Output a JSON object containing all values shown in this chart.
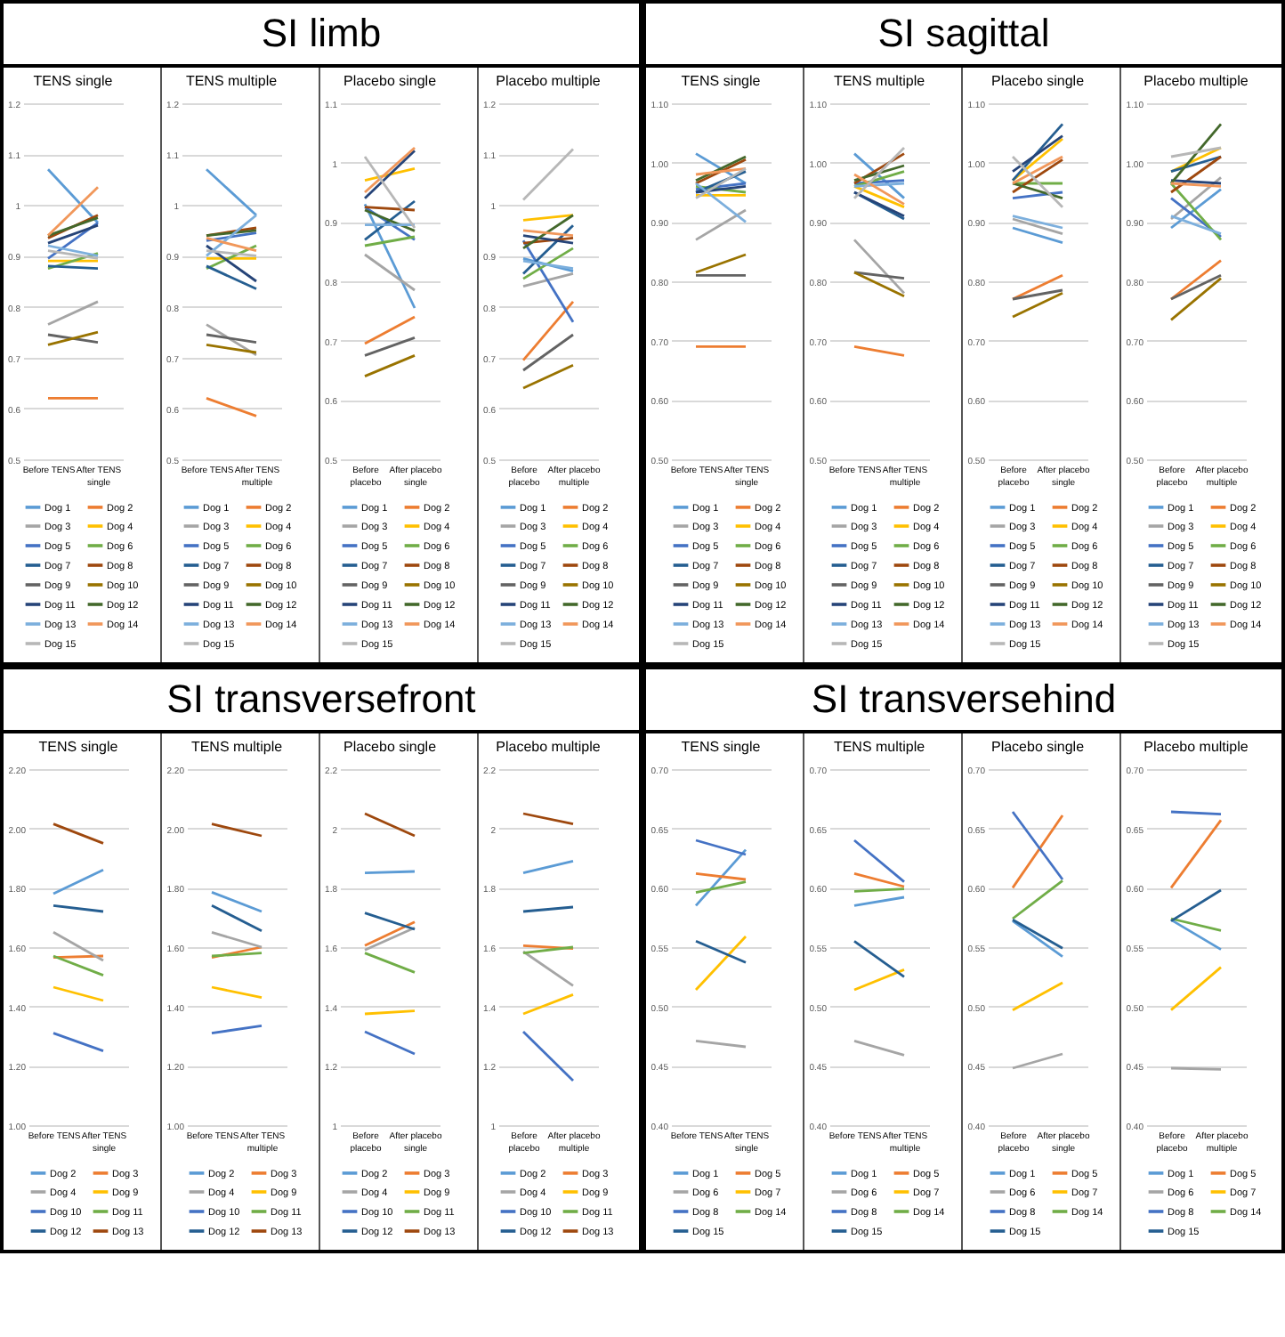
{
  "chart_data": [
    {
      "type": "other",
      "title": "SI limb"
    },
    {
      "type": "line",
      "subtitle": "TENS single",
      "categories": [
        "Before TENS",
        "After TENS single"
      ],
      "ylim": [
        0.5,
        1.2
      ],
      "yticks": [
        0.5,
        0.6,
        0.7,
        0.8,
        0.9,
        1,
        1.1,
        1.2
      ],
      "grid": "y",
      "legend": "bottom",
      "series": [
        {
          "name": "Dog 1",
          "color": "#5b9bd5",
          "values": [
            1.07,
            0.965
          ]
        },
        {
          "name": "Dog 2",
          "color": "#ed7d31",
          "values": [
            0.62,
            0.62
          ]
        },
        {
          "name": "Dog 3",
          "color": "#a5a5a5",
          "values": [
            0.765,
            0.81
          ]
        },
        {
          "name": "Dog 4",
          "color": "#ffc000",
          "values": [
            0.89,
            0.89
          ]
        },
        {
          "name": "Dog 5",
          "color": "#4472c4",
          "values": [
            0.895,
            0.965
          ]
        },
        {
          "name": "Dog 6",
          "color": "#70ad47",
          "values": [
            0.875,
            0.905
          ]
        },
        {
          "name": "Dog 7",
          "color": "#255e91",
          "values": [
            0.88,
            0.875
          ]
        },
        {
          "name": "Dog 8",
          "color": "#9e480e",
          "values": [
            0.935,
            0.98
          ]
        },
        {
          "name": "Dog 9",
          "color": "#636363",
          "values": [
            0.745,
            0.73
          ]
        },
        {
          "name": "Dog 10",
          "color": "#997300",
          "values": [
            0.725,
            0.75
          ]
        },
        {
          "name": "Dog 11",
          "color": "#264478",
          "values": [
            0.925,
            0.96
          ]
        },
        {
          "name": "Dog 12",
          "color": "#43682b",
          "values": [
            0.94,
            0.975
          ]
        },
        {
          "name": "Dog 13",
          "color": "#7cafdd",
          "values": [
            0.92,
            0.9
          ]
        },
        {
          "name": "Dog 14",
          "color": "#f1975a",
          "values": [
            0.94,
            1.035
          ]
        },
        {
          "name": "Dog 15",
          "color": "#b7b7b7",
          "values": [
            0.91,
            0.895
          ]
        }
      ]
    },
    {
      "type": "line",
      "subtitle": "TENS multiple",
      "categories": [
        "Before TENS",
        "After TENS multiple"
      ],
      "ylim": [
        0.5,
        1.2
      ],
      "yticks": [
        0.5,
        0.6,
        0.7,
        0.8,
        0.9,
        1,
        1.1,
        1.2
      ],
      "grid": "y",
      "legend": "bottom",
      "series": [
        {
          "name": "Dog 1",
          "color": "#5b9bd5",
          "values": [
            1.07,
            0.98
          ]
        },
        {
          "name": "Dog 2",
          "color": "#ed7d31",
          "values": [
            0.62,
            0.585
          ]
        },
        {
          "name": "Dog 3",
          "color": "#a5a5a5",
          "values": [
            0.765,
            0.705
          ]
        },
        {
          "name": "Dog 4",
          "color": "#ffc000",
          "values": [
            0.895,
            0.895
          ]
        },
        {
          "name": "Dog 5",
          "color": "#4472c4",
          "values": [
            0.93,
            0.945
          ]
        },
        {
          "name": "Dog 6",
          "color": "#70ad47",
          "values": [
            0.875,
            0.92
          ]
        },
        {
          "name": "Dog 7",
          "color": "#255e91",
          "values": [
            0.88,
            0.835
          ]
        },
        {
          "name": "Dog 8",
          "color": "#9e480e",
          "values": [
            0.94,
            0.955
          ]
        },
        {
          "name": "Dog 9",
          "color": "#636363",
          "values": [
            0.745,
            0.73
          ]
        },
        {
          "name": "Dog 10",
          "color": "#997300",
          "values": [
            0.725,
            0.71
          ]
        },
        {
          "name": "Dog 11",
          "color": "#264478",
          "values": [
            0.92,
            0.85
          ]
        },
        {
          "name": "Dog 12",
          "color": "#43682b",
          "values": [
            0.94,
            0.95
          ]
        },
        {
          "name": "Dog 13",
          "color": "#7cafdd",
          "values": [
            0.9,
            0.98
          ]
        },
        {
          "name": "Dog 14",
          "color": "#f1975a",
          "values": [
            0.935,
            0.91
          ]
        },
        {
          "name": "Dog 15",
          "color": "#b7b7b7",
          "values": [
            0.91,
            0.9
          ]
        }
      ]
    },
    {
      "type": "line",
      "subtitle": "Placebo single",
      "categories": [
        "Before placebo",
        "After placebo single"
      ],
      "ylim": [
        0.5,
        1.1
      ],
      "yticks": [
        0.5,
        0.6,
        0.7,
        0.8,
        0.9,
        1,
        1.1
      ],
      "grid": "y",
      "legend": "bottom",
      "series": [
        {
          "name": "Dog 1",
          "color": "#5b9bd5",
          "values": [
            0.93,
            0.755
          ]
        },
        {
          "name": "Dog 2",
          "color": "#ed7d31",
          "values": [
            0.695,
            0.74
          ]
        },
        {
          "name": "Dog 3",
          "color": "#a5a5a5",
          "values": [
            0.845,
            0.785
          ]
        },
        {
          "name": "Dog 4",
          "color": "#ffc000",
          "values": [
            0.97,
            0.99
          ]
        },
        {
          "name": "Dog 5",
          "color": "#4472c4",
          "values": [
            0.925,
            0.87
          ]
        },
        {
          "name": "Dog 6",
          "color": "#70ad47",
          "values": [
            0.86,
            0.875
          ]
        },
        {
          "name": "Dog 7",
          "color": "#255e91",
          "values": [
            0.87,
            0.935
          ]
        },
        {
          "name": "Dog 8",
          "color": "#9e480e",
          "values": [
            0.925,
            0.92
          ]
        },
        {
          "name": "Dog 9",
          "color": "#636363",
          "values": [
            0.675,
            0.705
          ]
        },
        {
          "name": "Dog 10",
          "color": "#997300",
          "values": [
            0.64,
            0.675
          ]
        },
        {
          "name": "Dog 11",
          "color": "#264478",
          "values": [
            0.94,
            1.02
          ]
        },
        {
          "name": "Dog 12",
          "color": "#43682b",
          "values": [
            0.92,
            0.885
          ]
        },
        {
          "name": "Dog 13",
          "color": "#7cafdd",
          "values": [
            0.895,
            0.895
          ]
        },
        {
          "name": "Dog 14",
          "color": "#f1975a",
          "values": [
            0.95,
            1.025
          ]
        },
        {
          "name": "Dog 15",
          "color": "#b7b7b7",
          "values": [
            1.01,
            0.89
          ]
        }
      ]
    },
    {
      "type": "line",
      "subtitle": "Placebo multiple",
      "categories": [
        "Before placebo",
        "After placebo multiple"
      ],
      "ylim": [
        0.5,
        1.2
      ],
      "yticks": [
        0.5,
        0.6,
        0.7,
        0.8,
        0.9,
        1,
        1.1,
        1.2
      ],
      "grid": "y",
      "legend": "bottom",
      "series": [
        {
          "name": "Dog 1",
          "color": "#5b9bd5",
          "values": [
            0.895,
            0.87
          ]
        },
        {
          "name": "Dog 2",
          "color": "#ed7d31",
          "values": [
            0.695,
            0.81
          ]
        },
        {
          "name": "Dog 3",
          "color": "#a5a5a5",
          "values": [
            0.84,
            0.865
          ]
        },
        {
          "name": "Dog 4",
          "color": "#ffc000",
          "values": [
            0.97,
            0.98
          ]
        },
        {
          "name": "Dog 5",
          "color": "#4472c4",
          "values": [
            0.93,
            0.77
          ]
        },
        {
          "name": "Dog 6",
          "color": "#70ad47",
          "values": [
            0.855,
            0.915
          ]
        },
        {
          "name": "Dog 7",
          "color": "#255e91",
          "values": [
            0.865,
            0.96
          ]
        },
        {
          "name": "Dog 8",
          "color": "#9e480e",
          "values": [
            0.925,
            0.935
          ]
        },
        {
          "name": "Dog 9",
          "color": "#636363",
          "values": [
            0.675,
            0.745
          ]
        },
        {
          "name": "Dog 10",
          "color": "#997300",
          "values": [
            0.64,
            0.685
          ]
        },
        {
          "name": "Dog 11",
          "color": "#264478",
          "values": [
            0.94,
            0.925
          ]
        },
        {
          "name": "Dog 12",
          "color": "#43682b",
          "values": [
            0.915,
            0.98
          ]
        },
        {
          "name": "Dog 13",
          "color": "#7cafdd",
          "values": [
            0.89,
            0.875
          ]
        },
        {
          "name": "Dog 14",
          "color": "#f1975a",
          "values": [
            0.95,
            0.94
          ]
        },
        {
          "name": "Dog 15",
          "color": "#b7b7b7",
          "values": [
            1.01,
            1.11
          ]
        }
      ]
    },
    {
      "type": "other",
      "title": "SI sagittal"
    },
    {
      "type": "line",
      "subtitle": "TENS single",
      "categories": [
        "Before TENS",
        "After TENS single"
      ],
      "ylim": [
        0.5,
        1.1
      ],
      "yticks": [
        {
          "value": 0.5,
          "label": "0.50"
        },
        {
          "value": 0.6,
          "label": "0.60"
        },
        {
          "value": 0.7,
          "label": "0.70"
        },
        {
          "value": 0.8,
          "label": "0.80"
        },
        {
          "value": 0.9,
          "label": "0.90"
        },
        {
          "value": 1,
          "label": "1.00"
        },
        {
          "value": 1.1,
          "label": "1.10"
        }
      ],
      "grid": "y",
      "legend": "bottom",
      "series": [
        {
          "name": "Dog 1",
          "color": "#5b9bd5",
          "values": [
            1.015,
            0.965
          ]
        },
        {
          "name": "Dog 2",
          "color": "#ed7d31",
          "values": [
            0.69,
            0.69
          ]
        },
        {
          "name": "Dog 3",
          "color": "#a5a5a5",
          "values": [
            0.87,
            0.92
          ]
        },
        {
          "name": "Dog 4",
          "color": "#ffc000",
          "values": [
            0.945,
            0.945
          ]
        },
        {
          "name": "Dog 5",
          "color": "#4472c4",
          "values": [
            0.955,
            0.965
          ]
        },
        {
          "name": "Dog 6",
          "color": "#70ad47",
          "values": [
            0.96,
            0.95
          ]
        },
        {
          "name": "Dog 7",
          "color": "#255e91",
          "values": [
            0.95,
            0.985
          ]
        },
        {
          "name": "Dog 8",
          "color": "#9e480e",
          "values": [
            0.965,
            1.005
          ]
        },
        {
          "name": "Dog 9",
          "color": "#636363",
          "values": [
            0.81,
            0.81
          ]
        },
        {
          "name": "Dog 10",
          "color": "#997300",
          "values": [
            0.815,
            0.845
          ]
        },
        {
          "name": "Dog 11",
          "color": "#264478",
          "values": [
            0.95,
            0.96
          ]
        },
        {
          "name": "Dog 12",
          "color": "#43682b",
          "values": [
            0.97,
            1.01
          ]
        },
        {
          "name": "Dog 13",
          "color": "#7cafdd",
          "values": [
            0.965,
            0.9
          ]
        },
        {
          "name": "Dog 14",
          "color": "#f1975a",
          "values": [
            0.98,
            0.99
          ]
        },
        {
          "name": "Dog 15",
          "color": "#b7b7b7",
          "values": [
            0.94,
            0.99
          ]
        }
      ]
    },
    {
      "type": "line",
      "subtitle": "TENS multiple",
      "categories": [
        "Before TENS",
        "After TENS multiple"
      ],
      "ylim": [
        0.5,
        1.1
      ],
      "yticks": [
        {
          "value": 0.5,
          "label": "0.50"
        },
        {
          "value": 0.6,
          "label": "0.60"
        },
        {
          "value": 0.7,
          "label": "0.70"
        },
        {
          "value": 0.8,
          "label": "0.80"
        },
        {
          "value": 0.9,
          "label": "0.90"
        },
        {
          "value": 1,
          "label": "1.00"
        },
        {
          "value": 1.1,
          "label": "1.10"
        }
      ],
      "grid": "y",
      "legend": "bottom",
      "series": [
        {
          "name": "Dog 1",
          "color": "#5b9bd5",
          "values": [
            1.015,
            0.94
          ]
        },
        {
          "name": "Dog 2",
          "color": "#ed7d31",
          "values": [
            0.69,
            0.675
          ]
        },
        {
          "name": "Dog 3",
          "color": "#a5a5a5",
          "values": [
            0.87,
            0.78
          ]
        },
        {
          "name": "Dog 4",
          "color": "#ffc000",
          "values": [
            0.96,
            0.925
          ]
        },
        {
          "name": "Dog 5",
          "color": "#4472c4",
          "values": [
            0.965,
            0.97
          ]
        },
        {
          "name": "Dog 6",
          "color": "#70ad47",
          "values": [
            0.96,
            0.985
          ]
        },
        {
          "name": "Dog 7",
          "color": "#255e91",
          "values": [
            0.95,
            0.905
          ]
        },
        {
          "name": "Dog 8",
          "color": "#9e480e",
          "values": [
            0.965,
            1.015
          ]
        },
        {
          "name": "Dog 9",
          "color": "#636363",
          "values": [
            0.815,
            0.805
          ]
        },
        {
          "name": "Dog 10",
          "color": "#997300",
          "values": [
            0.815,
            0.775
          ]
        },
        {
          "name": "Dog 11",
          "color": "#264478",
          "values": [
            0.95,
            0.91
          ]
        },
        {
          "name": "Dog 12",
          "color": "#43682b",
          "values": [
            0.97,
            0.995
          ]
        },
        {
          "name": "Dog 13",
          "color": "#7cafdd",
          "values": [
            0.96,
            0.965
          ]
        },
        {
          "name": "Dog 14",
          "color": "#f1975a",
          "values": [
            0.98,
            0.93
          ]
        },
        {
          "name": "Dog 15",
          "color": "#b7b7b7",
          "values": [
            0.94,
            1.025
          ]
        }
      ]
    },
    {
      "type": "line",
      "subtitle": "Placebo single",
      "categories": [
        "Before placebo",
        "After placebo single"
      ],
      "ylim": [
        0.5,
        1.1
      ],
      "yticks": [
        {
          "value": 0.5,
          "label": "0.50"
        },
        {
          "value": 0.6,
          "label": "0.60"
        },
        {
          "value": 0.7,
          "label": "0.70"
        },
        {
          "value": 0.8,
          "label": "0.80"
        },
        {
          "value": 0.9,
          "label": "0.90"
        },
        {
          "value": 1,
          "label": "1.00"
        },
        {
          "value": 1.1,
          "label": "1.10"
        }
      ],
      "grid": "y",
      "legend": "bottom",
      "series": [
        {
          "name": "Dog 1",
          "color": "#5b9bd5",
          "values": [
            0.89,
            0.865
          ]
        },
        {
          "name": "Dog 2",
          "color": "#ed7d31",
          "values": [
            0.77,
            0.81
          ]
        },
        {
          "name": "Dog 3",
          "color": "#a5a5a5",
          "values": [
            0.905,
            0.88
          ]
        },
        {
          "name": "Dog 4",
          "color": "#ffc000",
          "values": [
            0.97,
            1.04
          ]
        },
        {
          "name": "Dog 5",
          "color": "#4472c4",
          "values": [
            0.94,
            0.95
          ]
        },
        {
          "name": "Dog 6",
          "color": "#70ad47",
          "values": [
            0.965,
            0.965
          ]
        },
        {
          "name": "Dog 7",
          "color": "#255e91",
          "values": [
            0.97,
            1.065
          ]
        },
        {
          "name": "Dog 8",
          "color": "#9e480e",
          "values": [
            0.95,
            1.005
          ]
        },
        {
          "name": "Dog 9",
          "color": "#636363",
          "values": [
            0.77,
            0.785
          ]
        },
        {
          "name": "Dog 10",
          "color": "#997300",
          "values": [
            0.74,
            0.78
          ]
        },
        {
          "name": "Dog 11",
          "color": "#264478",
          "values": [
            0.985,
            1.045
          ]
        },
        {
          "name": "Dog 12",
          "color": "#43682b",
          "values": [
            0.965,
            0.94
          ]
        },
        {
          "name": "Dog 13",
          "color": "#7cafdd",
          "values": [
            0.91,
            0.89
          ]
        },
        {
          "name": "Dog 14",
          "color": "#f1975a",
          "values": [
            0.965,
            1.01
          ]
        },
        {
          "name": "Dog 15",
          "color": "#b7b7b7",
          "values": [
            1.01,
            0.925
          ]
        }
      ]
    },
    {
      "type": "line",
      "subtitle": "Placebo multiple",
      "categories": [
        "Before placebo",
        "After placebo multiple"
      ],
      "ylim": [
        0.5,
        1.1
      ],
      "yticks": [
        {
          "value": 0.5,
          "label": "0.50"
        },
        {
          "value": 0.6,
          "label": "0.60"
        },
        {
          "value": 0.7,
          "label": "0.70"
        },
        {
          "value": 0.8,
          "label": "0.80"
        },
        {
          "value": 0.9,
          "label": "0.90"
        },
        {
          "value": 1,
          "label": "1.00"
        },
        {
          "value": 1.1,
          "label": "1.10"
        }
      ],
      "grid": "y",
      "legend": "bottom",
      "series": [
        {
          "name": "Dog 1",
          "color": "#5b9bd5",
          "values": [
            0.89,
            0.955
          ]
        },
        {
          "name": "Dog 2",
          "color": "#ed7d31",
          "values": [
            0.77,
            0.835
          ]
        },
        {
          "name": "Dog 3",
          "color": "#a5a5a5",
          "values": [
            0.905,
            0.975
          ]
        },
        {
          "name": "Dog 4",
          "color": "#ffc000",
          "values": [
            0.985,
            1.025
          ]
        },
        {
          "name": "Dog 5",
          "color": "#4472c4",
          "values": [
            0.94,
            0.875
          ]
        },
        {
          "name": "Dog 6",
          "color": "#70ad47",
          "values": [
            0.965,
            0.87
          ]
        },
        {
          "name": "Dog 7",
          "color": "#255e91",
          "values": [
            0.985,
            1.01
          ]
        },
        {
          "name": "Dog 8",
          "color": "#9e480e",
          "values": [
            0.95,
            1.01
          ]
        },
        {
          "name": "Dog 9",
          "color": "#636363",
          "values": [
            0.77,
            0.81
          ]
        },
        {
          "name": "Dog 10",
          "color": "#997300",
          "values": [
            0.735,
            0.805
          ]
        },
        {
          "name": "Dog 11",
          "color": "#264478",
          "values": [
            0.97,
            0.965
          ]
        },
        {
          "name": "Dog 12",
          "color": "#43682b",
          "values": [
            0.965,
            1.065
          ]
        },
        {
          "name": "Dog 13",
          "color": "#7cafdd",
          "values": [
            0.91,
            0.88
          ]
        },
        {
          "name": "Dog 14",
          "color": "#f1975a",
          "values": [
            0.965,
            0.96
          ]
        },
        {
          "name": "Dog 15",
          "color": "#b7b7b7",
          "values": [
            1.01,
            1.025
          ]
        }
      ]
    },
    {
      "type": "other",
      "title": "SI transversefront"
    },
    {
      "type": "line",
      "subtitle": "TENS single",
      "categories": [
        "Before TENS",
        "After TENS single"
      ],
      "ylim": [
        1,
        2.2
      ],
      "yticks": [
        {
          "value": 1,
          "label": "1.00"
        },
        {
          "value": 1.2,
          "label": "1.20"
        },
        {
          "value": 1.4,
          "label": "1.40"
        },
        {
          "value": 1.6,
          "label": "1.60"
        },
        {
          "value": 1.8,
          "label": "1.80"
        },
        {
          "value": 2,
          "label": "2.00"
        },
        {
          "value": 2.2,
          "label": "2.20"
        }
      ],
      "grid": "y",
      "legend": "bottom",
      "series": [
        {
          "name": "Dog 2",
          "color": "#5b9bd5",
          "values": [
            1.78,
            1.86
          ]
        },
        {
          "name": "Dog 3",
          "color": "#ed7d31",
          "values": [
            1.565,
            1.57
          ]
        },
        {
          "name": "Dog 4",
          "color": "#a5a5a5",
          "values": [
            1.65,
            1.555
          ]
        },
        {
          "name": "Dog 9",
          "color": "#ffc000",
          "values": [
            1.465,
            1.42
          ]
        },
        {
          "name": "Dog 10",
          "color": "#4472c4",
          "values": [
            1.31,
            1.25
          ]
        },
        {
          "name": "Dog 11",
          "color": "#70ad47",
          "values": [
            1.57,
            1.505
          ]
        },
        {
          "name": "Dog 12",
          "color": "#255e91",
          "values": [
            1.74,
            1.72
          ]
        },
        {
          "name": "Dog 13",
          "color": "#9e480e",
          "values": [
            2.015,
            1.95
          ]
        }
      ]
    },
    {
      "type": "line",
      "subtitle": "TENS multiple",
      "categories": [
        "Before TENS",
        "After TENS multiple"
      ],
      "ylim": [
        1,
        2.2
      ],
      "yticks": [
        {
          "value": 1,
          "label": "1.00"
        },
        {
          "value": 1.2,
          "label": "1.20"
        },
        {
          "value": 1.4,
          "label": "1.40"
        },
        {
          "value": 1.6,
          "label": "1.60"
        },
        {
          "value": 1.8,
          "label": "1.80"
        },
        {
          "value": 2,
          "label": "2.00"
        },
        {
          "value": 2.2,
          "label": "2.20"
        }
      ],
      "grid": "y",
      "legend": "bottom",
      "series": [
        {
          "name": "Dog 2",
          "color": "#5b9bd5",
          "values": [
            1.785,
            1.72
          ]
        },
        {
          "name": "Dog 3",
          "color": "#ed7d31",
          "values": [
            1.565,
            1.6
          ]
        },
        {
          "name": "Dog 4",
          "color": "#a5a5a5",
          "values": [
            1.65,
            1.6
          ]
        },
        {
          "name": "Dog 9",
          "color": "#ffc000",
          "values": [
            1.465,
            1.43
          ]
        },
        {
          "name": "Dog 10",
          "color": "#4472c4",
          "values": [
            1.31,
            1.335
          ]
        },
        {
          "name": "Dog 11",
          "color": "#70ad47",
          "values": [
            1.57,
            1.58
          ]
        },
        {
          "name": "Dog 12",
          "color": "#255e91",
          "values": [
            1.74,
            1.655
          ]
        },
        {
          "name": "Dog 13",
          "color": "#9e480e",
          "values": [
            2.015,
            1.975
          ]
        }
      ]
    },
    {
      "type": "line",
      "subtitle": "Placebo single",
      "categories": [
        "Before placebo",
        "After placebo single"
      ],
      "ylim": [
        1,
        2.2
      ],
      "yticks": [
        1,
        1.2,
        1.4,
        1.6,
        1.8,
        2,
        2.2
      ],
      "grid": "y",
      "legend": "bottom",
      "series": [
        {
          "name": "Dog 2",
          "color": "#5b9bd5",
          "values": [
            1.85,
            1.855
          ]
        },
        {
          "name": "Dog 3",
          "color": "#ed7d31",
          "values": [
            1.605,
            1.685
          ]
        },
        {
          "name": "Dog 4",
          "color": "#a5a5a5",
          "values": [
            1.59,
            1.665
          ]
        },
        {
          "name": "Dog 9",
          "color": "#ffc000",
          "values": [
            1.375,
            1.385
          ]
        },
        {
          "name": "Dog 10",
          "color": "#4472c4",
          "values": [
            1.315,
            1.24
          ]
        },
        {
          "name": "Dog 11",
          "color": "#70ad47",
          "values": [
            1.58,
            1.515
          ]
        },
        {
          "name": "Dog 12",
          "color": "#255e91",
          "values": [
            1.715,
            1.66
          ]
        },
        {
          "name": "Dog 13",
          "color": "#9e480e",
          "values": [
            2.05,
            1.975
          ]
        }
      ]
    },
    {
      "type": "line",
      "subtitle": "Placebo multiple",
      "categories": [
        "Before placebo",
        "After placebo multiple"
      ],
      "ylim": [
        1,
        2.2
      ],
      "yticks": [
        1,
        1.2,
        1.4,
        1.6,
        1.8,
        2,
        2.2
      ],
      "grid": "y",
      "legend": "bottom",
      "series": [
        {
          "name": "Dog 2",
          "color": "#5b9bd5",
          "values": [
            1.85,
            1.89
          ]
        },
        {
          "name": "Dog 3",
          "color": "#ed7d31",
          "values": [
            1.605,
            1.595
          ]
        },
        {
          "name": "Dog 4",
          "color": "#a5a5a5",
          "values": [
            1.585,
            1.47
          ]
        },
        {
          "name": "Dog 9",
          "color": "#ffc000",
          "values": [
            1.375,
            1.44
          ]
        },
        {
          "name": "Dog 10",
          "color": "#4472c4",
          "values": [
            1.315,
            1.15
          ]
        },
        {
          "name": "Dog 11",
          "color": "#70ad47",
          "values": [
            1.58,
            1.6
          ]
        },
        {
          "name": "Dog 12",
          "color": "#255e91",
          "values": [
            1.72,
            1.735
          ]
        },
        {
          "name": "Dog 13",
          "color": "#9e480e",
          "values": [
            2.05,
            2.015
          ]
        }
      ]
    },
    {
      "type": "other",
      "title": "SI transversehind"
    },
    {
      "type": "line",
      "subtitle": "TENS single",
      "categories": [
        "Before TENS",
        "After TENS single"
      ],
      "ylim": [
        0.4,
        0.7
      ],
      "yticks": [
        {
          "value": 0.4,
          "label": "0.40"
        },
        {
          "value": 0.45,
          "label": "0.45"
        },
        {
          "value": 0.5,
          "label": "0.50"
        },
        {
          "value": 0.55,
          "label": "0.55"
        },
        {
          "value": 0.6,
          "label": "0.60"
        },
        {
          "value": 0.65,
          "label": "0.65"
        },
        {
          "value": 0.7,
          "label": "0.70"
        }
      ],
      "grid": "y",
      "legend": "bottom",
      "series": [
        {
          "name": "Dog 1",
          "color": "#5b9bd5",
          "values": [
            0.585,
            0.632
          ]
        },
        {
          "name": "Dog 5",
          "color": "#ed7d31",
          "values": [
            0.612,
            0.607
          ]
        },
        {
          "name": "Dog 6",
          "color": "#a5a5a5",
          "values": [
            0.471,
            0.466
          ]
        },
        {
          "name": "Dog 7",
          "color": "#ffc000",
          "values": [
            0.514,
            0.559
          ]
        },
        {
          "name": "Dog 8",
          "color": "#4472c4",
          "values": [
            0.64,
            0.628
          ]
        },
        {
          "name": "Dog 14",
          "color": "#70ad47",
          "values": [
            0.596,
            0.605
          ]
        },
        {
          "name": "Dog 15",
          "color": "#255e91",
          "values": [
            0.555,
            0.537
          ]
        }
      ]
    },
    {
      "type": "line",
      "subtitle": "TENS multiple",
      "categories": [
        "Before TENS",
        "After TENS multiple"
      ],
      "ylim": [
        0.4,
        0.7
      ],
      "yticks": [
        {
          "value": 0.4,
          "label": "0.40"
        },
        {
          "value": 0.45,
          "label": "0.45"
        },
        {
          "value": 0.5,
          "label": "0.50"
        },
        {
          "value": 0.55,
          "label": "0.55"
        },
        {
          "value": 0.6,
          "label": "0.60"
        },
        {
          "value": 0.65,
          "label": "0.65"
        },
        {
          "value": 0.7,
          "label": "0.70"
        }
      ],
      "grid": "y",
      "legend": "bottom",
      "series": [
        {
          "name": "Dog 1",
          "color": "#5b9bd5",
          "values": [
            0.585,
            0.592
          ]
        },
        {
          "name": "Dog 5",
          "color": "#ed7d31",
          "values": [
            0.612,
            0.601
          ]
        },
        {
          "name": "Dog 6",
          "color": "#a5a5a5",
          "values": [
            0.471,
            0.459
          ]
        },
        {
          "name": "Dog 7",
          "color": "#ffc000",
          "values": [
            0.514,
            0.531
          ]
        },
        {
          "name": "Dog 8",
          "color": "#4472c4",
          "values": [
            0.64,
            0.605
          ]
        },
        {
          "name": "Dog 14",
          "color": "#70ad47",
          "values": [
            0.597,
            0.599
          ]
        },
        {
          "name": "Dog 15",
          "color": "#255e91",
          "values": [
            0.555,
            0.525
          ]
        }
      ]
    },
    {
      "type": "line",
      "subtitle": "Placebo single",
      "categories": [
        "Before placebo",
        "After placebo single"
      ],
      "ylim": [
        0.4,
        0.7
      ],
      "yticks": [
        {
          "value": 0.4,
          "label": "0.40"
        },
        {
          "value": 0.45,
          "label": "0.45"
        },
        {
          "value": 0.5,
          "label": "0.50"
        },
        {
          "value": 0.55,
          "label": "0.55"
        },
        {
          "value": 0.6,
          "label": "0.60"
        },
        {
          "value": 0.65,
          "label": "0.65"
        },
        {
          "value": 0.7,
          "label": "0.70"
        }
      ],
      "grid": "y",
      "legend": "bottom",
      "series": [
        {
          "name": "Dog 1",
          "color": "#5b9bd5",
          "values": [
            0.572,
            0.542
          ]
        },
        {
          "name": "Dog 5",
          "color": "#ed7d31",
          "values": [
            0.6,
            0.661
          ]
        },
        {
          "name": "Dog 6",
          "color": "#a5a5a5",
          "values": [
            0.448,
            0.46
          ]
        },
        {
          "name": "Dog 7",
          "color": "#ffc000",
          "values": [
            0.497,
            0.52
          ]
        },
        {
          "name": "Dog 8",
          "color": "#4472c4",
          "values": [
            0.664,
            0.607
          ]
        },
        {
          "name": "Dog 14",
          "color": "#70ad47",
          "values": [
            0.574,
            0.606
          ]
        },
        {
          "name": "Dog 15",
          "color": "#255e91",
          "values": [
            0.573,
            0.549
          ]
        }
      ]
    },
    {
      "type": "line",
      "subtitle": "Placebo multiple",
      "categories": [
        "Before placebo",
        "After placebo multiple"
      ],
      "ylim": [
        0.4,
        0.7
      ],
      "yticks": [
        {
          "value": 0.4,
          "label": "0.40"
        },
        {
          "value": 0.45,
          "label": "0.45"
        },
        {
          "value": 0.5,
          "label": "0.50"
        },
        {
          "value": 0.55,
          "label": "0.55"
        },
        {
          "value": 0.6,
          "label": "0.60"
        },
        {
          "value": 0.65,
          "label": "0.65"
        },
        {
          "value": 0.7,
          "label": "0.70"
        }
      ],
      "grid": "y",
      "legend": "bottom",
      "series": [
        {
          "name": "Dog 1",
          "color": "#5b9bd5",
          "values": [
            0.573,
            0.548
          ]
        },
        {
          "name": "Dog 5",
          "color": "#ed7d31",
          "values": [
            0.6,
            0.657
          ]
        },
        {
          "name": "Dog 6",
          "color": "#a5a5a5",
          "values": [
            0.448,
            0.447
          ]
        },
        {
          "name": "Dog 7",
          "color": "#ffc000",
          "values": [
            0.497,
            0.533
          ]
        },
        {
          "name": "Dog 8",
          "color": "#4472c4",
          "values": [
            0.664,
            0.662
          ]
        },
        {
          "name": "Dog 14",
          "color": "#70ad47",
          "values": [
            0.574,
            0.564
          ]
        },
        {
          "name": "Dog 15",
          "color": "#255e91",
          "values": [
            0.572,
            0.598
          ]
        }
      ]
    }
  ]
}
